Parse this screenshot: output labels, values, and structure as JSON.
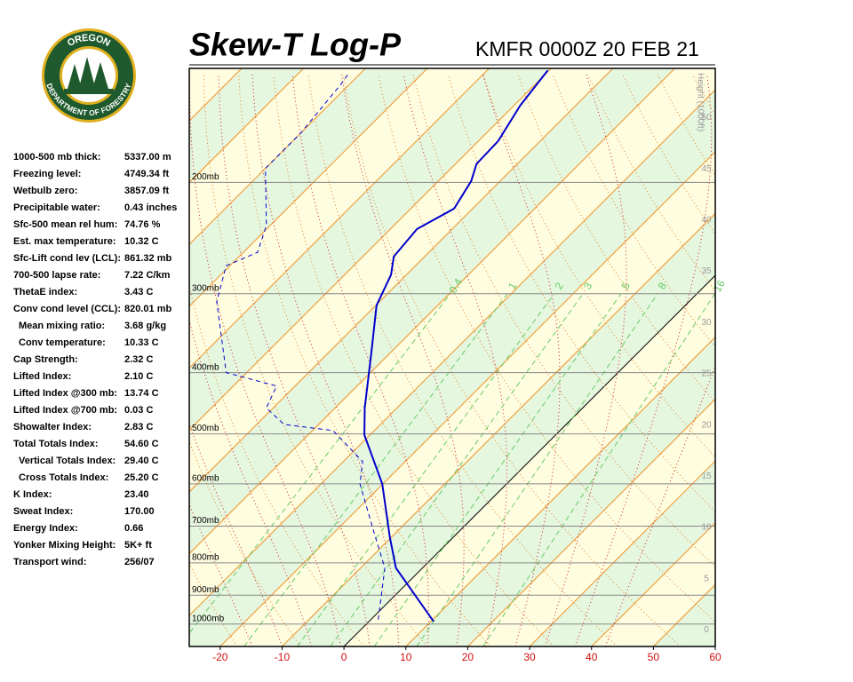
{
  "logo": {
    "top": "OREGON",
    "bottom": "DEPARTMENT OF FORESTRY"
  },
  "stats": [
    {
      "label": "1000-500 mb thick:",
      "value": "5337.00 m"
    },
    {
      "label": "Freezing level:",
      "value": "4749.34 ft"
    },
    {
      "label": "Wetbulb zero:",
      "value": "3857.09 ft"
    },
    {
      "label": "Precipitable water:",
      "value": "0.43 inches"
    },
    {
      "label": "Sfc-500 mean rel hum:",
      "value": "74.76 %"
    },
    {
      "label": "Est. max temperature:",
      "value": "10.32 C"
    },
    {
      "label": "Sfc-Lift cond lev (LCL):",
      "value": "861.32 mb"
    },
    {
      "label": "700-500 lapse rate:",
      "value": "7.22 C/km"
    },
    {
      "label": "ThetaE index:",
      "value": "3.43 C"
    },
    {
      "label": "Conv cond level (CCL):",
      "value": "820.01 mb"
    },
    {
      "label": "Mean mixing ratio:",
      "value": "3.68 g/kg"
    },
    {
      "label": "Conv temperature:",
      "value": "10.33 C"
    },
    {
      "label": "Cap Strength:",
      "value": "2.32 C"
    },
    {
      "label": "Lifted Index:",
      "value": "2.10 C"
    },
    {
      "label": "Lifted Index @300 mb:",
      "value": "13.74 C"
    },
    {
      "label": "Lifted Index @700 mb:",
      "value": "0.03 C"
    },
    {
      "label": "Showalter Index:",
      "value": "2.83 C"
    },
    {
      "label": "Total Totals Index:",
      "value": "54.60 C"
    },
    {
      "label": "Vertical Totals Index:",
      "value": "29.40 C"
    },
    {
      "label": "Cross Totals Index:",
      "value": "25.20 C"
    },
    {
      "label": "K Index:",
      "value": "23.40"
    },
    {
      "label": "Sweat Index:",
      "value": "170.00"
    },
    {
      "label": "Energy Index:",
      "value": "0.66"
    },
    {
      "label": "Yonker Mixing Height:",
      "value": "5K+ ft"
    },
    {
      "label": "Transport wind:",
      "value": "256/07"
    }
  ],
  "chart_data": {
    "type": "skewt",
    "title": "Skew-T Log-P",
    "subtitle": "KMFR 0000Z 20 FEB 21",
    "xlim": [
      -25,
      60
    ],
    "ylim": [
      1085,
      132
    ],
    "xticks": [
      -20,
      -10,
      0,
      10,
      20,
      30,
      40,
      50,
      60
    ],
    "yticks": [
      {
        "value": 1000,
        "label": "1000mb"
      },
      {
        "value": 900,
        "label": "900mb"
      },
      {
        "value": 800,
        "label": "800mb"
      },
      {
        "value": 700,
        "label": "700mb"
      },
      {
        "value": 600,
        "label": "600mb"
      },
      {
        "value": 500,
        "label": "500mb"
      },
      {
        "value": 400,
        "label": "400mb"
      },
      {
        "value": 300,
        "label": "300mb"
      },
      {
        "value": 200,
        "label": "200mb"
      }
    ],
    "series": [
      {
        "color": "#0000cc",
        "dash": "none",
        "width": 2,
        "p": [
          990,
          815,
          728,
          600,
          502,
          455,
          369,
          313,
          280,
          262,
          237,
          220,
          199,
          187,
          172,
          151,
          133
        ],
        "values": [
          10.4,
          -4.3,
          -10.3,
          -20.1,
          -30.9,
          -35.2,
          -43.4,
          -49.9,
          -52.5,
          -55.0,
          -55.7,
          -53.0,
          -54.7,
          -56.6,
          -56.8,
          -59.0,
          -60.2
        ]
      },
      {
        "color": "#0000cc",
        "dash": "5,4",
        "width": 1,
        "p": [
          984,
          815,
          716,
          600,
          553,
          494,
          483,
          455,
          420,
          400,
          309,
          271,
          258,
          234,
          190,
          167,
          140,
          134
        ],
        "values": [
          1.2,
          -6.1,
          -13.6,
          -23.7,
          -26.9,
          -36.7,
          -45.6,
          -51.1,
          -53.0,
          -63.3,
          -76.3,
          -80.6,
          -77.7,
          -80.6,
          -90.0,
          -90.0,
          -91.4,
          -91.9
        ]
      }
    ],
    "mixing_ratio": {
      "color": "#66cc66",
      "ticks": [
        {
          "value": 0.4,
          "label": "0.4"
        },
        1,
        2,
        3,
        5,
        8,
        16
      ]
    },
    "height": {
      "label": "Height (1000ft)",
      "lim": [
        -1.6,
        54.8
      ],
      "ticks": [
        0,
        5,
        10,
        15,
        20,
        25,
        30,
        35,
        40,
        45,
        50
      ]
    },
    "grid": true
  }
}
